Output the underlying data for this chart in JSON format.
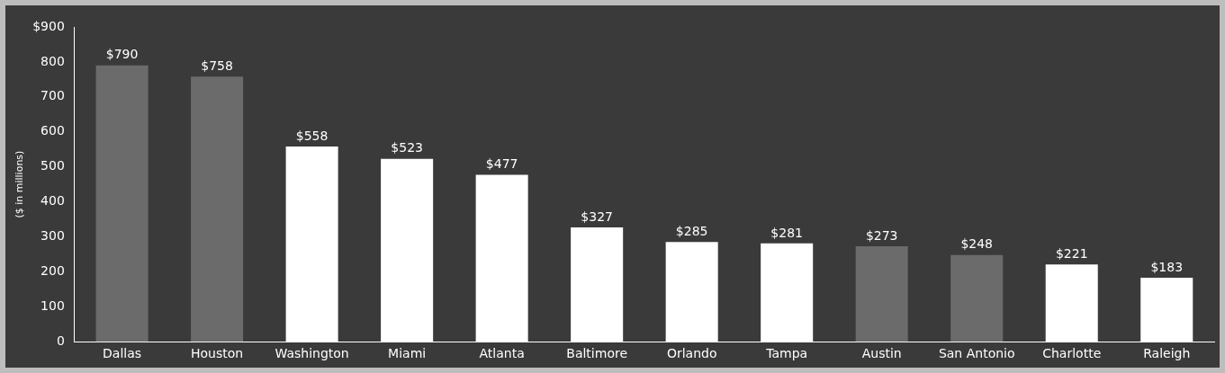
{
  "chart_data": {
    "type": "bar",
    "ylabel": "($ in millions)",
    "categories": [
      "Dallas",
      "Houston",
      "Washington",
      "Miami",
      "Atlanta",
      "Baltimore",
      "Orlando",
      "Tampa",
      "Austin",
      "San Antonio",
      "Charlotte",
      "Raleigh"
    ],
    "values": [
      790,
      758,
      558,
      523,
      477,
      327,
      285,
      281,
      273,
      248,
      221,
      183
    ],
    "colors": [
      "#6b6b6b",
      "#6b6b6b",
      "#ffffff",
      "#ffffff",
      "#ffffff",
      "#ffffff",
      "#ffffff",
      "#ffffff",
      "#6b6b6b",
      "#6b6b6b",
      "#ffffff",
      "#ffffff"
    ],
    "value_labels": [
      "$790",
      "$758",
      "$558",
      "$523",
      "$477",
      "$327",
      "$285",
      "$281",
      "$273",
      "$248",
      "$221",
      "$183"
    ],
    "ylim": [
      0,
      900
    ],
    "yticks": [
      0,
      100,
      200,
      300,
      400,
      500,
      600,
      700,
      800,
      {
        "value": 900,
        "label": "$900"
      }
    ],
    "grid": false,
    "legend": false
  }
}
